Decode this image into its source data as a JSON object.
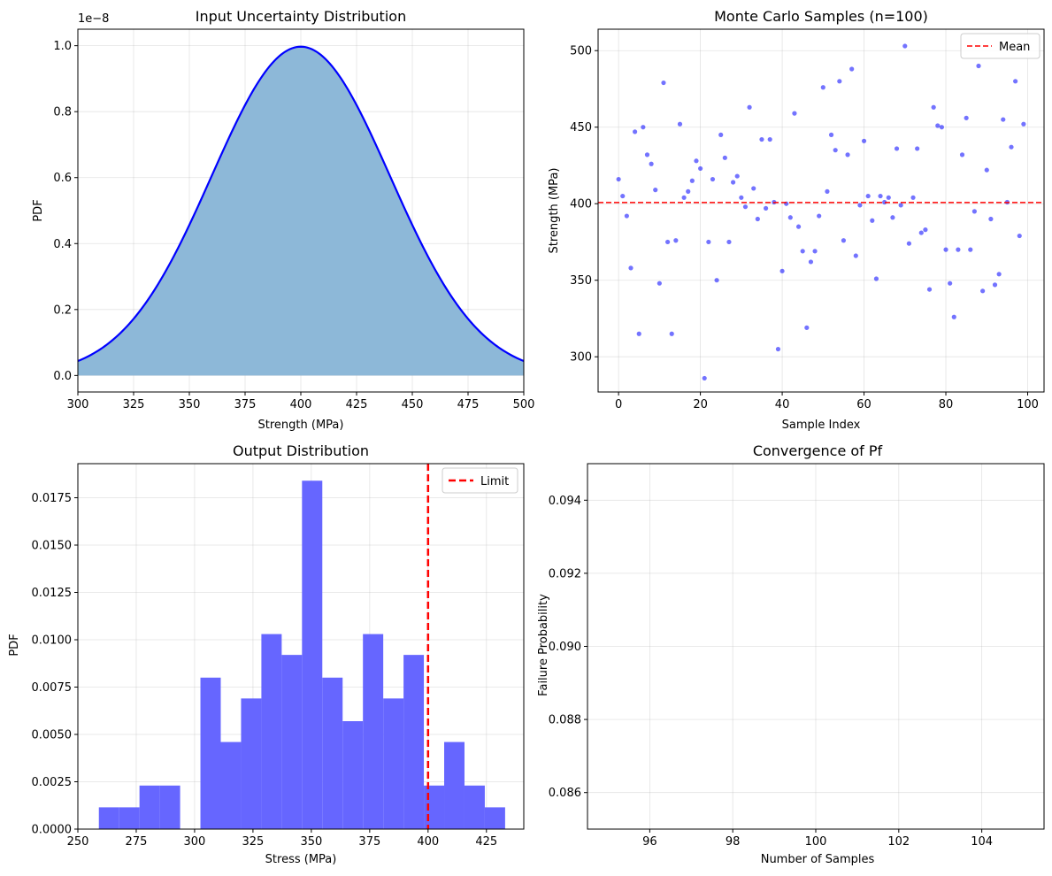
{
  "chart_data": [
    {
      "id": "p1",
      "type": "area",
      "title": "Input Uncertainty Distribution",
      "xlabel": "Strength (MPa)",
      "ylabel": "PDF",
      "offset_label": "1e−8",
      "xlim": [
        300,
        500
      ],
      "ylim": [
        -0.05,
        1.05
      ],
      "xticks": [
        300,
        325,
        350,
        375,
        400,
        425,
        450,
        475,
        500
      ],
      "xtick_labels": [
        "300",
        "325",
        "350",
        "375",
        "400",
        "425",
        "450",
        "475",
        "500"
      ],
      "yticks": [
        0.0,
        0.2,
        0.4,
        0.6,
        0.8,
        1.0
      ],
      "ytick_labels": [
        "0.0",
        "0.2",
        "0.4",
        "0.6",
        "0.8",
        "1.0"
      ],
      "distribution": {
        "kind": "normal",
        "mean": 400,
        "std": 40,
        "peak": 0.997,
        "scale_exponent": -8
      },
      "line_color": "#0000ff",
      "fill_color": "#8db8d8",
      "grid": true
    },
    {
      "id": "p2",
      "type": "scatter",
      "title": "Monte Carlo Samples (n=100)",
      "xlabel": "Sample Index",
      "ylabel": "Strength (MPa)",
      "xlim": [
        -5,
        104
      ],
      "ylim": [
        277,
        514
      ],
      "xticks": [
        0,
        20,
        40,
        60,
        80,
        100
      ],
      "xtick_labels": [
        "0",
        "20",
        "40",
        "60",
        "80",
        "100"
      ],
      "yticks": [
        300,
        350,
        400,
        450,
        500
      ],
      "ytick_labels": [
        "300",
        "350",
        "400",
        "450",
        "500"
      ],
      "point_color": "#0000ff",
      "mean_value": 400.8,
      "mean_color": "#ff0000",
      "legend": [
        "Mean"
      ],
      "legend_position": "upper right",
      "x": [
        0,
        1,
        2,
        3,
        4,
        5,
        6,
        7,
        8,
        9,
        10,
        11,
        12,
        13,
        14,
        15,
        16,
        17,
        18,
        19,
        20,
        21,
        22,
        23,
        24,
        25,
        26,
        27,
        28,
        29,
        30,
        31,
        32,
        33,
        34,
        35,
        36,
        37,
        38,
        39,
        40,
        41,
        42,
        43,
        44,
        45,
        46,
        47,
        48,
        49,
        50,
        51,
        52,
        53,
        54,
        55,
        56,
        57,
        58,
        59,
        60,
        61,
        62,
        63,
        64,
        65,
        66,
        67,
        68,
        69,
        70,
        71,
        72,
        73,
        74,
        75,
        76,
        77,
        78,
        79,
        80,
        81,
        82,
        83,
        84,
        85,
        86,
        87,
        88,
        89,
        90,
        91,
        92,
        93,
        94,
        95,
        96,
        97,
        98,
        99
      ],
      "values": [
        416,
        405,
        392,
        358,
        447,
        315,
        450,
        432,
        426,
        409,
        348,
        479,
        375,
        315,
        376,
        452,
        404,
        408,
        415,
        428,
        423,
        286,
        375,
        416,
        350,
        445,
        430,
        375,
        414,
        418,
        404,
        398,
        463,
        410,
        390,
        442,
        397,
        442,
        401,
        305,
        356,
        400,
        391,
        459,
        385,
        369,
        319,
        362,
        369,
        392,
        476,
        408,
        445,
        435,
        480,
        376,
        432,
        488,
        366,
        399,
        441,
        405,
        389,
        351,
        405,
        401,
        404,
        391,
        436,
        399,
        503,
        374,
        404,
        436,
        381,
        383,
        344,
        463,
        451,
        450,
        370,
        348,
        326,
        370,
        432,
        456,
        370,
        395,
        490,
        343,
        422,
        390,
        347,
        354,
        455,
        401,
        437,
        480,
        379,
        452
      ],
      "grid": true
    },
    {
      "id": "p3",
      "type": "bar",
      "title": "Output Distribution",
      "xlabel": "Stress (MPa)",
      "ylabel": "PDF",
      "xlim": [
        250,
        441
      ],
      "ylim": [
        0,
        0.0193
      ],
      "xticks": [
        250,
        275,
        300,
        325,
        350,
        375,
        400,
        425
      ],
      "xtick_labels": [
        "250",
        "275",
        "300",
        "325",
        "350",
        "375",
        "400",
        "425"
      ],
      "yticks": [
        0,
        0.0025,
        0.005,
        0.0075,
        0.01,
        0.0125,
        0.015,
        0.0175
      ],
      "ytick_labels": [
        "0.0000",
        "0.0025",
        "0.0050",
        "0.0075",
        "0.0100",
        "0.0125",
        "0.0150",
        "0.0175"
      ],
      "bin_edges": [
        259.0,
        267.7,
        276.4,
        285.1,
        293.8,
        302.5,
        311.2,
        319.9,
        328.6,
        337.3,
        346.0,
        354.7,
        363.4,
        372.1,
        380.8,
        389.5,
        398.2,
        406.9,
        415.6,
        424.3,
        433.0
      ],
      "values": [
        0.00115,
        0.00115,
        0.0023,
        0.0023,
        0.0,
        0.008,
        0.0046,
        0.0069,
        0.0103,
        0.0092,
        0.0184,
        0.008,
        0.0057,
        0.0103,
        0.0069,
        0.0092,
        0.0023,
        0.0046,
        0.0023,
        0.00115
      ],
      "bar_color": "#6666ff",
      "limit_value": 400,
      "limit_color": "#ff0000",
      "legend": [
        "Limit"
      ],
      "legend_position": "upper right",
      "grid": true
    },
    {
      "id": "p4",
      "type": "line",
      "title": "Convergence of Pf",
      "xlabel": "Number of Samples",
      "ylabel": "Failure Probability",
      "xlim": [
        94.5,
        105.5
      ],
      "ylim": [
        0.085,
        0.095
      ],
      "xticks": [
        96,
        98,
        100,
        102,
        104
      ],
      "xtick_labels": [
        "96",
        "98",
        "100",
        "102",
        "104"
      ],
      "yticks": [
        0.086,
        0.088,
        0.09,
        0.092,
        0.094
      ],
      "ytick_labels": [
        "0.086",
        "0.088",
        "0.090",
        "0.092",
        "0.094"
      ],
      "x": [],
      "values": [],
      "grid": true
    }
  ]
}
